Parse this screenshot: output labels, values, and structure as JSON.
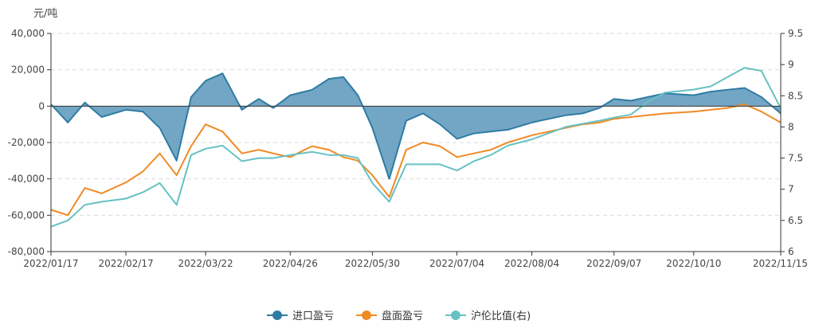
{
  "chart_data": {
    "type": "area",
    "y_unit_label": "元/吨",
    "x_tick_labels": [
      "2022/01/17",
      "2022/02/17",
      "2022/03/22",
      "2022/04/26",
      "2022/05/30",
      "2022/07/04",
      "2022/08/04",
      "2022/09/07",
      "2022/10/10",
      "2022/11/15"
    ],
    "y_left": {
      "ticks": [
        "40,000",
        "20,000",
        "0",
        "-20,000",
        "-40,000",
        "-60,000",
        "-80,000"
      ],
      "range": [
        -80000,
        40000
      ]
    },
    "y_right": {
      "ticks": [
        "9.5",
        "9",
        "8.5",
        "8",
        "7.5",
        "7",
        "6.5",
        "6"
      ],
      "range": [
        6,
        9.5
      ]
    },
    "grid": "horizontal dashed",
    "legend_position": "bottom",
    "series": [
      {
        "name": "进口盈亏",
        "axis": "left",
        "style": "area",
        "color": "#2e7ca4",
        "fill": "#5b97ba",
        "x": [
          "2022/01/17",
          "2022/01/24",
          "2022/01/31",
          "2022/02/07",
          "2022/02/17",
          "2022/02/24",
          "2022/03/03",
          "2022/03/10",
          "2022/03/16",
          "2022/03/22",
          "2022/03/29",
          "2022/04/06",
          "2022/04/13",
          "2022/04/19",
          "2022/04/26",
          "2022/05/05",
          "2022/05/12",
          "2022/05/18",
          "2022/05/24",
          "2022/05/30",
          "2022/06/06",
          "2022/06/13",
          "2022/06/20",
          "2022/06/27",
          "2022/07/04",
          "2022/07/11",
          "2022/07/18",
          "2022/07/25",
          "2022/08/04",
          "2022/08/11",
          "2022/08/18",
          "2022/08/25",
          "2022/09/01",
          "2022/09/07",
          "2022/09/14",
          "2022/09/21",
          "2022/09/28",
          "2022/10/10",
          "2022/10/17",
          "2022/10/24",
          "2022/10/31",
          "2022/11/07",
          "2022/11/15"
        ],
        "values": [
          1000,
          -9000,
          2000,
          -6000,
          -2000,
          -3000,
          -12000,
          -30000,
          5000,
          14000,
          18000,
          -2000,
          4000,
          -1000,
          6000,
          9000,
          15000,
          16000,
          6000,
          -12000,
          -40000,
          -8000,
          -4000,
          -10000,
          -18000,
          -15000,
          -14000,
          -13000,
          -9000,
          -7000,
          -5000,
          -4000,
          -1000,
          4000,
          3000,
          5000,
          7000,
          6000,
          8000,
          9000,
          10000,
          5000,
          -4000
        ]
      },
      {
        "name": "盘面盈亏",
        "axis": "left",
        "style": "line",
        "color": "#f08a24",
        "x": [
          "2022/01/17",
          "2022/01/24",
          "2022/01/31",
          "2022/02/07",
          "2022/02/17",
          "2022/02/24",
          "2022/03/03",
          "2022/03/10",
          "2022/03/16",
          "2022/03/22",
          "2022/03/29",
          "2022/04/06",
          "2022/04/13",
          "2022/04/19",
          "2022/04/26",
          "2022/05/05",
          "2022/05/12",
          "2022/05/18",
          "2022/05/24",
          "2022/05/30",
          "2022/06/06",
          "2022/06/13",
          "2022/06/20",
          "2022/06/27",
          "2022/07/04",
          "2022/07/11",
          "2022/07/18",
          "2022/07/25",
          "2022/08/04",
          "2022/08/11",
          "2022/08/18",
          "2022/08/25",
          "2022/09/01",
          "2022/09/07",
          "2022/09/14",
          "2022/09/21",
          "2022/09/28",
          "2022/10/10",
          "2022/10/17",
          "2022/10/24",
          "2022/10/31",
          "2022/11/07",
          "2022/11/15"
        ],
        "values": [
          -57000,
          -60000,
          -45000,
          -48000,
          -42000,
          -36000,
          -26000,
          -38000,
          -22000,
          -10000,
          -14000,
          -26000,
          -24000,
          -26000,
          -28000,
          -22000,
          -24000,
          -28000,
          -30000,
          -38000,
          -50000,
          -24000,
          -20000,
          -22000,
          -28000,
          -26000,
          -24000,
          -20000,
          -16000,
          -14000,
          -12000,
          -10000,
          -9000,
          -7000,
          -6000,
          -5000,
          -4000,
          -3000,
          -2000,
          -1000,
          1000,
          -3000,
          -9000
        ]
      },
      {
        "name": "沪伦比值(右)",
        "axis": "right",
        "style": "line",
        "color": "#67c1c3",
        "x": [
          "2022/01/17",
          "2022/01/24",
          "2022/01/31",
          "2022/02/07",
          "2022/02/17",
          "2022/02/24",
          "2022/03/03",
          "2022/03/10",
          "2022/03/16",
          "2022/03/22",
          "2022/03/29",
          "2022/04/06",
          "2022/04/13",
          "2022/04/19",
          "2022/04/26",
          "2022/05/05",
          "2022/05/12",
          "2022/05/18",
          "2022/05/24",
          "2022/05/30",
          "2022/06/06",
          "2022/06/13",
          "2022/06/20",
          "2022/06/27",
          "2022/07/04",
          "2022/07/11",
          "2022/07/18",
          "2022/07/25",
          "2022/08/04",
          "2022/08/11",
          "2022/08/18",
          "2022/08/25",
          "2022/09/01",
          "2022/09/07",
          "2022/09/14",
          "2022/09/21",
          "2022/09/28",
          "2022/10/10",
          "2022/10/17",
          "2022/10/24",
          "2022/10/31",
          "2022/11/07",
          "2022/11/15"
        ],
        "values": [
          6.4,
          6.5,
          6.75,
          6.8,
          6.85,
          6.95,
          7.1,
          6.75,
          7.55,
          7.65,
          7.7,
          7.45,
          7.5,
          7.5,
          7.55,
          7.6,
          7.55,
          7.55,
          7.5,
          7.1,
          6.8,
          7.4,
          7.4,
          7.4,
          7.3,
          7.45,
          7.55,
          7.7,
          7.8,
          7.9,
          8.0,
          8.05,
          8.1,
          8.15,
          8.2,
          8.4,
          8.55,
          8.6,
          8.65,
          8.8,
          8.95,
          8.9,
          8.3
        ]
      }
    ]
  }
}
